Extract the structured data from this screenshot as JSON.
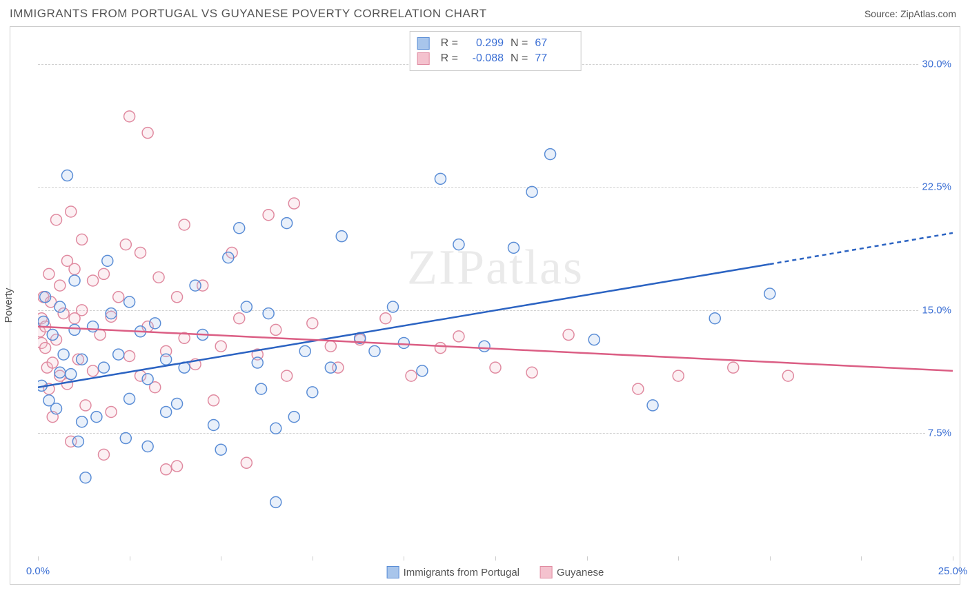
{
  "title": "IMMIGRANTS FROM PORTUGAL VS GUYANESE POVERTY CORRELATION CHART",
  "source": "Source: ZipAtlas.com",
  "ylabel": "Poverty",
  "watermark": "ZIPatlas",
  "chart": {
    "type": "scatter-with-regression",
    "background_color": "#ffffff",
    "grid_color": "#d0d0d0",
    "border_color": "#cccccc",
    "xlim": [
      0,
      25
    ],
    "ylim": [
      0,
      32
    ],
    "yticks": [
      7.5,
      15.0,
      22.5,
      30.0
    ],
    "ytick_labels": [
      "7.5%",
      "15.0%",
      "22.5%",
      "30.0%"
    ],
    "xticks": [
      0,
      2.5,
      5,
      7.5,
      10,
      12.5,
      15,
      17.5,
      20,
      22.5,
      25
    ],
    "xtick_labels": {
      "0": "0.0%",
      "25": "25.0%"
    },
    "label_color": "#3b6fd4",
    "text_color": "#555555",
    "label_fontsize": 15,
    "title_fontsize": 17,
    "marker_radius": 8,
    "marker_stroke_width": 1.5,
    "marker_fill_opacity": 0.25,
    "regression_line_width": 2.5,
    "series": [
      {
        "name": "Immigrants from Portugal",
        "color_stroke": "#5a8dd6",
        "color_fill": "#a8c5eb",
        "line_color": "#2b63c2",
        "R": "0.299",
        "N": "67",
        "regression": {
          "x1": 0,
          "y1": 10.3,
          "x2": 20,
          "y2": 17.8,
          "extend_to": 25,
          "y_extend": 19.7
        },
        "points": [
          [
            0.1,
            10.4
          ],
          [
            0.15,
            14.3
          ],
          [
            0.2,
            15.8
          ],
          [
            0.3,
            9.5
          ],
          [
            0.4,
            13.5
          ],
          [
            0.5,
            9.0
          ],
          [
            0.6,
            15.2
          ],
          [
            0.6,
            11.2
          ],
          [
            0.7,
            12.3
          ],
          [
            0.8,
            23.2
          ],
          [
            0.9,
            11.1
          ],
          [
            1.0,
            16.8
          ],
          [
            1.0,
            13.8
          ],
          [
            1.1,
            7.0
          ],
          [
            1.2,
            8.2
          ],
          [
            1.2,
            12.0
          ],
          [
            1.3,
            4.8
          ],
          [
            1.5,
            14.0
          ],
          [
            1.6,
            8.5
          ],
          [
            1.8,
            11.5
          ],
          [
            1.9,
            18.0
          ],
          [
            2.0,
            14.8
          ],
          [
            2.2,
            12.3
          ],
          [
            2.4,
            7.2
          ],
          [
            2.5,
            15.5
          ],
          [
            2.5,
            9.6
          ],
          [
            2.8,
            13.7
          ],
          [
            3.0,
            10.8
          ],
          [
            3.0,
            6.7
          ],
          [
            3.2,
            14.2
          ],
          [
            3.5,
            12.0
          ],
          [
            3.5,
            8.8
          ],
          [
            3.8,
            9.3
          ],
          [
            4.0,
            11.5
          ],
          [
            4.3,
            16.5
          ],
          [
            4.5,
            13.5
          ],
          [
            4.8,
            8.0
          ],
          [
            5.0,
            6.5
          ],
          [
            5.2,
            18.2
          ],
          [
            5.5,
            20.0
          ],
          [
            5.7,
            15.2
          ],
          [
            6.0,
            11.8
          ],
          [
            6.1,
            10.2
          ],
          [
            6.3,
            14.8
          ],
          [
            6.5,
            7.8
          ],
          [
            6.5,
            3.3
          ],
          [
            6.8,
            20.3
          ],
          [
            7.0,
            8.5
          ],
          [
            7.3,
            12.5
          ],
          [
            7.5,
            10.0
          ],
          [
            8.0,
            11.5
          ],
          [
            8.3,
            19.5
          ],
          [
            8.8,
            13.3
          ],
          [
            9.2,
            12.5
          ],
          [
            9.7,
            15.2
          ],
          [
            10.0,
            13.0
          ],
          [
            10.5,
            11.3
          ],
          [
            11.0,
            23.0
          ],
          [
            11.5,
            19.0
          ],
          [
            12.2,
            12.8
          ],
          [
            13.0,
            18.8
          ],
          [
            13.5,
            22.2
          ],
          [
            14.0,
            24.5
          ],
          [
            15.2,
            13.2
          ],
          [
            16.8,
            9.2
          ],
          [
            18.5,
            14.5
          ],
          [
            20.0,
            16.0
          ]
        ]
      },
      {
        "name": "Guyanese",
        "color_stroke": "#e08aa0",
        "color_fill": "#f4c2ce",
        "line_color": "#db5e84",
        "R": "-0.088",
        "N": "77",
        "regression": {
          "x1": 0,
          "y1": 14.0,
          "x2": 25,
          "y2": 11.3
        },
        "points": [
          [
            0.05,
            13.7
          ],
          [
            0.1,
            14.5
          ],
          [
            0.1,
            13.0
          ],
          [
            0.15,
            15.8
          ],
          [
            0.2,
            12.7
          ],
          [
            0.2,
            14.0
          ],
          [
            0.25,
            11.5
          ],
          [
            0.3,
            17.2
          ],
          [
            0.3,
            10.2
          ],
          [
            0.35,
            15.5
          ],
          [
            0.4,
            11.8
          ],
          [
            0.4,
            8.5
          ],
          [
            0.5,
            20.5
          ],
          [
            0.5,
            13.2
          ],
          [
            0.6,
            11.0
          ],
          [
            0.6,
            16.5
          ],
          [
            0.7,
            14.8
          ],
          [
            0.8,
            18.0
          ],
          [
            0.8,
            10.5
          ],
          [
            0.9,
            7.0
          ],
          [
            0.9,
            21.0
          ],
          [
            1.0,
            14.5
          ],
          [
            1.0,
            17.5
          ],
          [
            1.1,
            12.0
          ],
          [
            1.2,
            15.0
          ],
          [
            1.2,
            19.3
          ],
          [
            1.3,
            9.2
          ],
          [
            1.5,
            16.8
          ],
          [
            1.5,
            11.3
          ],
          [
            1.7,
            13.5
          ],
          [
            1.8,
            6.2
          ],
          [
            1.8,
            17.2
          ],
          [
            2.0,
            14.6
          ],
          [
            2.0,
            8.8
          ],
          [
            2.2,
            15.8
          ],
          [
            2.4,
            19.0
          ],
          [
            2.5,
            12.2
          ],
          [
            2.5,
            26.8
          ],
          [
            2.8,
            11.0
          ],
          [
            2.8,
            18.5
          ],
          [
            3.0,
            14.0
          ],
          [
            3.0,
            25.8
          ],
          [
            3.2,
            10.3
          ],
          [
            3.3,
            17.0
          ],
          [
            3.5,
            12.5
          ],
          [
            3.5,
            5.3
          ],
          [
            3.8,
            15.8
          ],
          [
            3.8,
            5.5
          ],
          [
            4.0,
            13.3
          ],
          [
            4.0,
            20.2
          ],
          [
            4.3,
            11.7
          ],
          [
            4.5,
            16.5
          ],
          [
            4.8,
            9.5
          ],
          [
            5.0,
            12.8
          ],
          [
            5.3,
            18.5
          ],
          [
            5.5,
            14.5
          ],
          [
            5.7,
            5.7
          ],
          [
            6.0,
            12.3
          ],
          [
            6.3,
            20.8
          ],
          [
            6.5,
            13.8
          ],
          [
            6.8,
            11.0
          ],
          [
            7.0,
            21.5
          ],
          [
            7.5,
            14.2
          ],
          [
            8.0,
            12.8
          ],
          [
            8.2,
            11.5
          ],
          [
            8.8,
            13.2
          ],
          [
            9.5,
            14.5
          ],
          [
            10.2,
            11.0
          ],
          [
            11.0,
            12.7
          ],
          [
            11.5,
            13.4
          ],
          [
            12.5,
            11.5
          ],
          [
            13.5,
            11.2
          ],
          [
            14.5,
            13.5
          ],
          [
            16.4,
            10.2
          ],
          [
            17.5,
            11.0
          ],
          [
            19.0,
            11.5
          ],
          [
            20.5,
            11.0
          ]
        ]
      }
    ],
    "legend_top": {
      "R_label": "R =",
      "N_label": "N ="
    },
    "legend_x_items": [
      "Immigrants from Portugal",
      "Guyanese"
    ]
  }
}
